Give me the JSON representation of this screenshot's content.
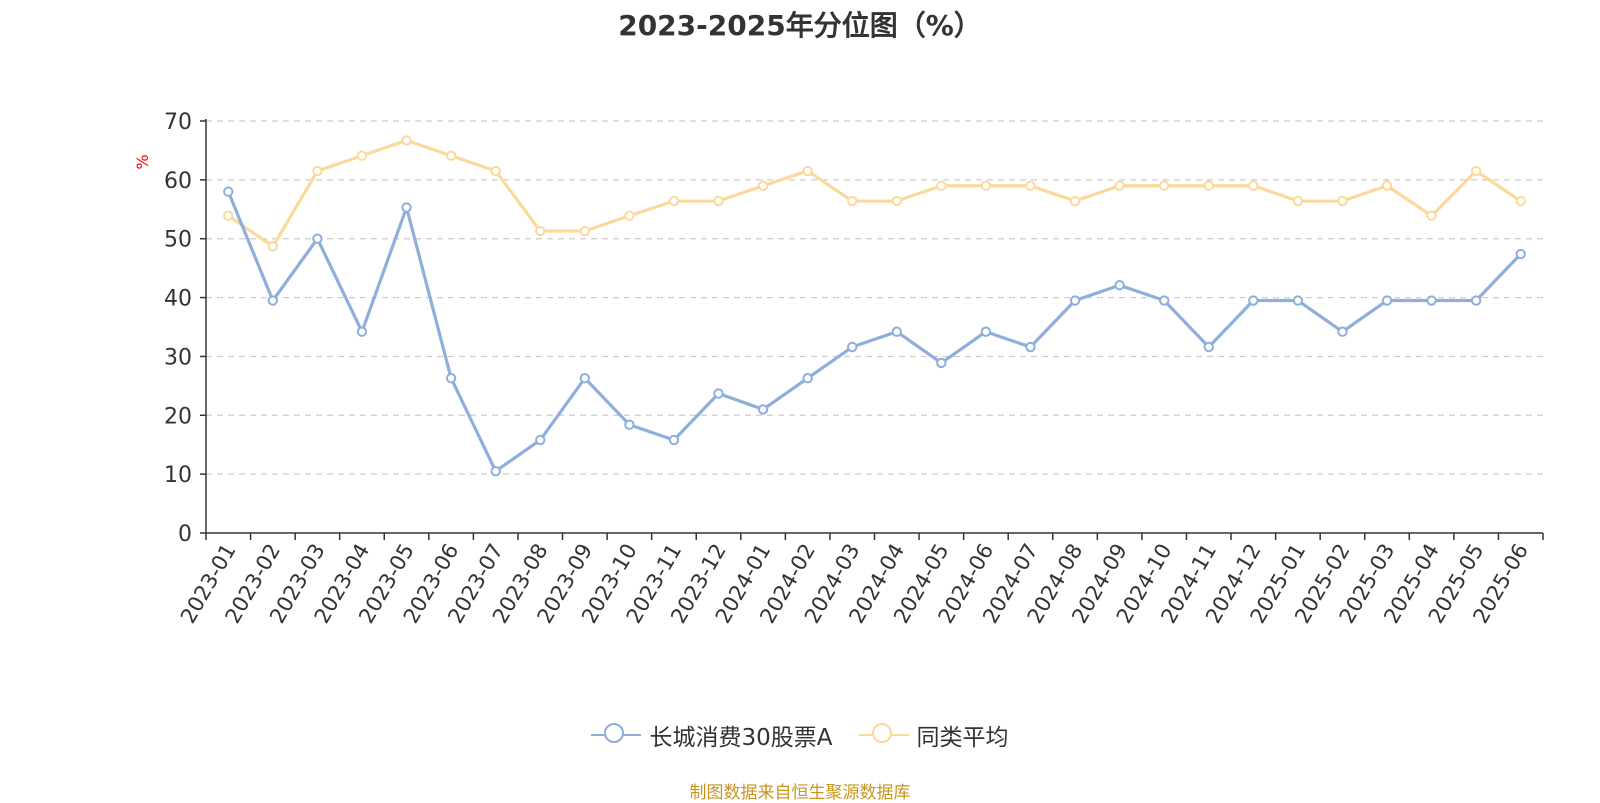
{
  "chart_data": {
    "type": "line",
    "title": "2023-2025年分位图（%）",
    "ylabel": "%",
    "xlabel": "",
    "ylim": [
      0,
      70
    ],
    "yticks": [
      0,
      10,
      20,
      30,
      40,
      50,
      60,
      70
    ],
    "grid": true,
    "legend_position": "bottom",
    "categories": [
      "2023-01",
      "2023-02",
      "2023-03",
      "2023-04",
      "2023-05",
      "2023-06",
      "2023-07",
      "2023-08",
      "2023-09",
      "2023-10",
      "2023-11",
      "2023-12",
      "2024-01",
      "2024-02",
      "2024-03",
      "2024-04",
      "2024-05",
      "2024-06",
      "2024-07",
      "2024-08",
      "2024-09",
      "2024-10",
      "2024-11",
      "2024-12",
      "2025-01",
      "2025-02",
      "2025-03",
      "2025-04",
      "2025-05",
      "2025-06"
    ],
    "series": [
      {
        "name": "长城消费30股票A",
        "color": "#8eaedb",
        "values": [
          58,
          39.5,
          50,
          34.2,
          55.3,
          26.3,
          10.5,
          15.8,
          26.3,
          18.4,
          15.8,
          23.7,
          21,
          26.3,
          31.6,
          34.2,
          28.9,
          34.2,
          31.6,
          39.5,
          42.1,
          39.5,
          31.6,
          39.5,
          39.5,
          34.2,
          39.5,
          39.5,
          39.5,
          47.4
        ]
      },
      {
        "name": "同类平均",
        "color": "#fbd99b",
        "values": [
          53.9,
          48.7,
          61.5,
          64.1,
          66.7,
          64.1,
          61.5,
          51.3,
          51.3,
          53.9,
          56.4,
          56.4,
          59,
          61.5,
          56.4,
          56.4,
          59,
          59,
          59,
          56.4,
          59,
          59,
          59,
          59,
          56.4,
          56.4,
          59,
          53.9,
          61.5,
          56.4
        ]
      }
    ]
  },
  "source_note": "制图数据来自恒生聚源数据库"
}
